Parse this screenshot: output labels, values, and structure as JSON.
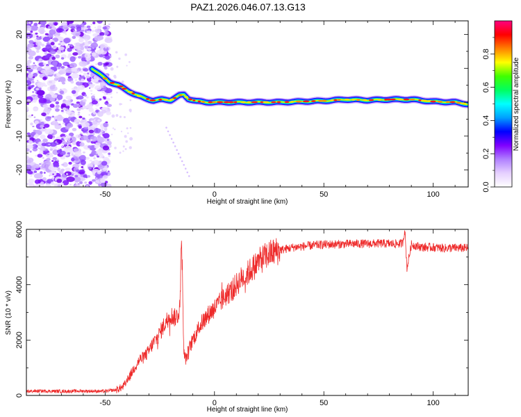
{
  "title": "PAZ1.2026.046.07.13.G13",
  "chart_data": [
    {
      "type": "heatmap",
      "name": "spectrogram",
      "xlabel": "Height of straight line (km)",
      "ylabel": "Frequency (Hz)",
      "xlim": [
        -86,
        116
      ],
      "ylim": [
        -25,
        24
      ],
      "xticks": [
        -50,
        0,
        50,
        100
      ],
      "yticks": [
        -20,
        -10,
        0,
        10,
        20
      ],
      "xtick_labels": [
        "-50",
        "0",
        "50",
        "100"
      ],
      "ytick_labels": [
        "-20",
        "-10",
        "0",
        "10",
        "20"
      ],
      "ridge": {
        "x": [
          -56,
          -52,
          -48,
          -44,
          -40,
          -36,
          -32,
          -28,
          -24,
          -20,
          -16,
          -14,
          -12,
          -8,
          -4,
          0,
          10,
          20,
          30,
          40,
          50,
          60,
          70,
          80,
          90,
          100,
          110,
          116
        ],
        "y": [
          10,
          8,
          6,
          5,
          3.5,
          2.2,
          1.2,
          0.5,
          0.8,
          0.6,
          2.0,
          2.2,
          1.0,
          0.3,
          0,
          0,
          0,
          0,
          0,
          0.2,
          0.4,
          0.8,
          0.6,
          0.8,
          0.8,
          0.2,
          0,
          -0.6
        ]
      },
      "noise_region_x": [
        -86,
        -48
      ],
      "colorbar": {
        "label": "Normalized spectral amplitude",
        "range": [
          0,
          1
        ],
        "ticks": [
          0.0,
          0.2,
          0.4,
          0.6,
          0.8
        ],
        "tick_labels": [
          "0.0",
          "0.2",
          "0.4",
          "0.6",
          "0.8"
        ],
        "colors": [
          "#ffffff",
          "#e6d0ff",
          "#b080ff",
          "#7f00ff",
          "#0000ff",
          "#00a0ff",
          "#00ffff",
          "#00ff60",
          "#40ff00",
          "#ffff00",
          "#ff8000",
          "#ff0000",
          "#ff0080"
        ]
      }
    },
    {
      "type": "line",
      "name": "snr",
      "xlabel": "Height of straight line (km)",
      "ylabel": "SNR (10 * v/v)",
      "xlim": [
        -86,
        116
      ],
      "ylim": [
        0,
        6000
      ],
      "xticks": [
        -50,
        0,
        50,
        100
      ],
      "yticks": [
        0,
        2000,
        4000,
        6000
      ],
      "xtick_labels": [
        "-50",
        "0",
        "50",
        "100"
      ],
      "ytick_labels": [
        "0",
        "2000",
        "4000",
        "6000"
      ],
      "color": "#ee2a2a",
      "series": [
        {
          "name": "SNR",
          "x": [
            -86,
            -80,
            -70,
            -60,
            -50,
            -45,
            -42,
            -40,
            -38,
            -36,
            -34,
            -32,
            -30,
            -28,
            -26,
            -24,
            -22,
            -20,
            -18,
            -16,
            -15,
            -14,
            -13,
            -12,
            -10,
            -8,
            -6,
            -4,
            -2,
            0,
            2,
            5,
            8,
            10,
            12,
            15,
            18,
            20,
            22,
            25,
            28,
            30,
            33,
            36,
            40,
            45,
            50,
            55,
            60,
            65,
            70,
            75,
            80,
            85,
            86,
            87,
            88,
            90,
            95,
            100,
            105,
            110,
            116
          ],
          "y": [
            150,
            160,
            150,
            160,
            150,
            200,
            300,
            500,
            800,
            1100,
            1300,
            1400,
            1600,
            1900,
            2100,
            2400,
            2700,
            2900,
            2800,
            3000,
            5700,
            1500,
            1300,
            1600,
            2000,
            2300,
            2600,
            2800,
            3000,
            3150,
            3300,
            3600,
            3800,
            4000,
            4200,
            4400,
            4650,
            4800,
            4950,
            5100,
            5200,
            5250,
            5300,
            5350,
            5380,
            5420,
            5450,
            5460,
            5470,
            5480,
            5480,
            5490,
            5480,
            5480,
            5500,
            6000,
            4600,
            5450,
            5350,
            5350,
            5320,
            5330,
            5320
          ]
        }
      ]
    }
  ]
}
